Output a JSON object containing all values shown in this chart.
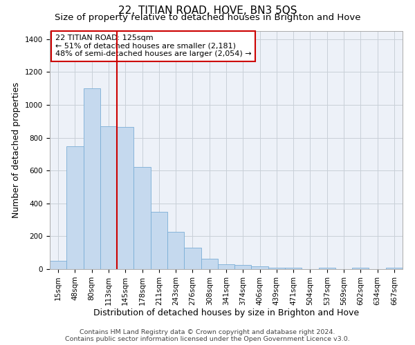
{
  "title": "22, TITIAN ROAD, HOVE, BN3 5QS",
  "subtitle": "Size of property relative to detached houses in Brighton and Hove",
  "xlabel": "Distribution of detached houses by size in Brighton and Hove",
  "ylabel": "Number of detached properties",
  "footer_line1": "Contains HM Land Registry data © Crown copyright and database right 2024.",
  "footer_line2": "Contains public sector information licensed under the Open Government Licence v3.0.",
  "annotation_title": "22 TITIAN ROAD: 125sqm",
  "annotation_line2": "← 51% of detached houses are smaller (2,181)",
  "annotation_line3": "48% of semi-detached houses are larger (2,054) →",
  "categories": [
    "15sqm",
    "48sqm",
    "80sqm",
    "113sqm",
    "145sqm",
    "178sqm",
    "211sqm",
    "243sqm",
    "276sqm",
    "308sqm",
    "341sqm",
    "374sqm",
    "406sqm",
    "439sqm",
    "471sqm",
    "504sqm",
    "537sqm",
    "569sqm",
    "602sqm",
    "634sqm",
    "667sqm"
  ],
  "values": [
    50,
    750,
    1100,
    870,
    865,
    620,
    350,
    225,
    130,
    65,
    30,
    25,
    15,
    10,
    10,
    0,
    10,
    0,
    10,
    0,
    10
  ],
  "bar_color": "#c5d9ee",
  "bar_edge_color": "#7aaed6",
  "vline_color": "#cc0000",
  "vline_pos": 3.5,
  "ylim_max": 1450,
  "grid_color": "#c8cfd8",
  "background_color": "#edf1f8",
  "annotation_box_color": "#ffffff",
  "annotation_box_edge": "#cc0000",
  "title_fontsize": 11,
  "subtitle_fontsize": 9.5,
  "xlabel_fontsize": 9,
  "ylabel_fontsize": 9,
  "tick_fontsize": 7.5,
  "annotation_fontsize": 8,
  "footer_fontsize": 6.8
}
